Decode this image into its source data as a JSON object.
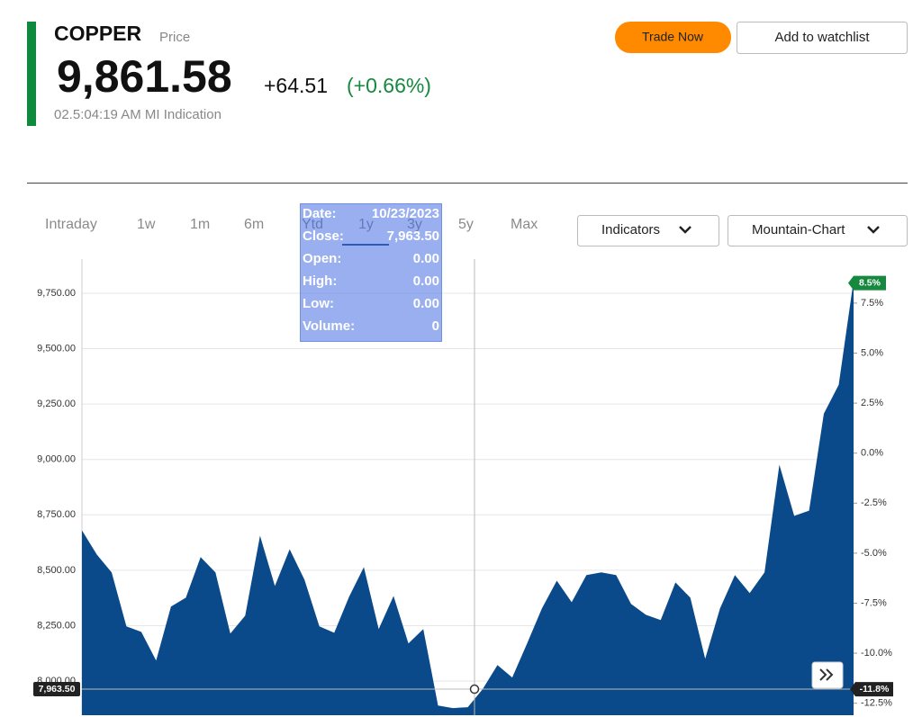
{
  "header": {
    "symbol": "COPPER",
    "symbol_sub": "Price",
    "price": "9,861.58",
    "change": "+64.51",
    "change_pct": "(+0.66%)",
    "time": "02.5:04:19 AM MI Indication"
  },
  "buttons": {
    "trade": "Trade Now",
    "watchlist": "Add to watchlist",
    "indicators": "Indicators",
    "chart_type": "Mountain-Chart"
  },
  "tabs": [
    "Intraday",
    "1w",
    "1m",
    "6m",
    "Ytd",
    "1y",
    "3y",
    "5y",
    "Max"
  ],
  "tooltip": [
    {
      "label": "Date:",
      "value": "10/23/2023"
    },
    {
      "label": "Close:",
      "value": "7,963.50"
    },
    {
      "label": "Open:",
      "value": "0.00"
    },
    {
      "label": "High:",
      "value": "0.00"
    },
    {
      "label": "Low:",
      "value": "0.00"
    },
    {
      "label": "Volume:",
      "value": "0"
    }
  ],
  "chart_data": {
    "type": "area",
    "color": "#0b4a8a",
    "values": [
      8680,
      8571,
      8490,
      8247,
      8222,
      8093,
      8336,
      8376,
      8559,
      8490,
      8214,
      8295,
      8656,
      8429,
      8595,
      8457,
      8247,
      8218,
      8380,
      8514,
      8235,
      8384,
      8170,
      8235,
      7890,
      7878,
      7882,
      7963.5,
      8072,
      8016,
      8170,
      8328,
      8453,
      8356,
      8478,
      8490,
      8478,
      8348,
      8299,
      8275,
      8445,
      8376,
      8101,
      8328,
      8478,
      8397,
      8490,
      8976,
      8745,
      8769,
      9207,
      9337,
      9807
    ],
    "ylim": [
      7846,
      9904
    ],
    "yticks": [
      {
        "value": 8000,
        "label": "8,000.00"
      },
      {
        "value": 8250,
        "label": "8,250.00"
      },
      {
        "value": 8500,
        "label": "8,500.00"
      },
      {
        "value": 8750,
        "label": "8,750.00"
      },
      {
        "value": 9000,
        "label": "9,000.00"
      },
      {
        "value": 9250,
        "label": "9,250.00"
      },
      {
        "value": 9500,
        "label": "9,500.00"
      },
      {
        "value": 9750,
        "label": "9,750.00"
      }
    ],
    "y2lim": [
      -13.1,
      9.7
    ],
    "y2ticks": [
      {
        "value": -12.5,
        "label": "-12.5%"
      },
      {
        "value": -10,
        "label": "-10.0%"
      },
      {
        "value": -7.5,
        "label": "-7.5%"
      },
      {
        "value": -5,
        "label": "-5.0%"
      },
      {
        "value": -2.5,
        "label": "-2.5%"
      },
      {
        "value": 0,
        "label": "0.0%"
      },
      {
        "value": 2.5,
        "label": "2.5%"
      },
      {
        "value": 5,
        "label": "5.0%"
      },
      {
        "value": 7.5,
        "label": "7.5%"
      }
    ],
    "grid": true,
    "crosshair": {
      "value": 7963.5,
      "label": "7,963.50",
      "pct": -11.8,
      "pct_label": "-11.8%"
    },
    "last_pct": {
      "value": 8.5,
      "label": "8.5%"
    }
  }
}
